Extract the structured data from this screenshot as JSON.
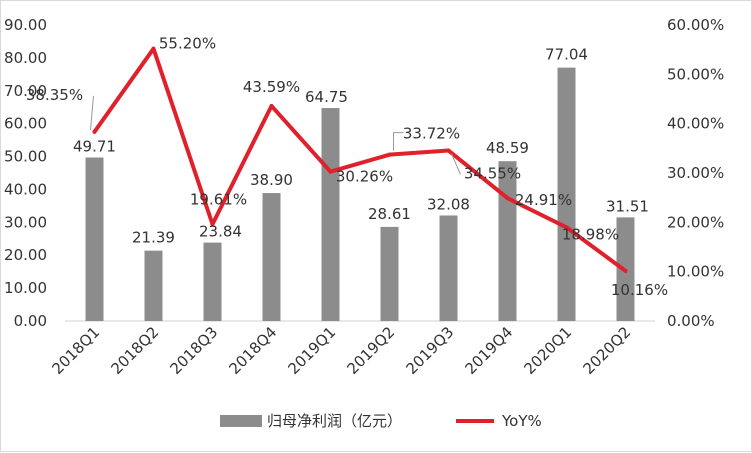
{
  "chart_data": {
    "type": "bar",
    "categories": [
      "2018Q1",
      "2018Q2",
      "2018Q3",
      "2018Q4",
      "2019Q1",
      "2019Q2",
      "2019Q3",
      "2019Q4",
      "2020Q1",
      "2020Q2"
    ],
    "series": [
      {
        "name": "归母净利润（亿元）",
        "type": "bar",
        "axis": "left",
        "color": "#8c8c8c",
        "values": [
          49.71,
          21.39,
          23.84,
          38.9,
          64.75,
          28.61,
          32.08,
          48.59,
          77.04,
          31.51
        ],
        "labels": [
          "49.71",
          "21.39",
          "23.84",
          "38.90",
          "64.75",
          "28.61",
          "32.08",
          "48.59",
          "77.04",
          "31.51"
        ]
      },
      {
        "name": "YoY%",
        "type": "line",
        "axis": "right",
        "color": "#e0202a",
        "values": [
          38.35,
          55.2,
          19.61,
          43.59,
          30.26,
          33.72,
          34.55,
          24.91,
          18.98,
          10.16
        ],
        "labels": [
          "38.35%",
          "55.20%",
          "19.61%",
          "43.59%",
          "30.26%",
          "33.72%",
          "34.55%",
          "24.91%",
          "18.98%",
          "10.16%"
        ]
      }
    ],
    "y_left": {
      "range": [
        0,
        90
      ],
      "ticks": [
        "0.00",
        "10.00",
        "20.00",
        "30.00",
        "40.00",
        "50.00",
        "60.00",
        "70.00",
        "80.00",
        "90.00"
      ]
    },
    "y_right": {
      "range": [
        0,
        60
      ],
      "ticks": [
        "0.00%",
        "10.00%",
        "20.00%",
        "30.00%",
        "40.00%",
        "50.00%",
        "60.00%"
      ]
    },
    "grid": false,
    "legend": "bottom"
  }
}
